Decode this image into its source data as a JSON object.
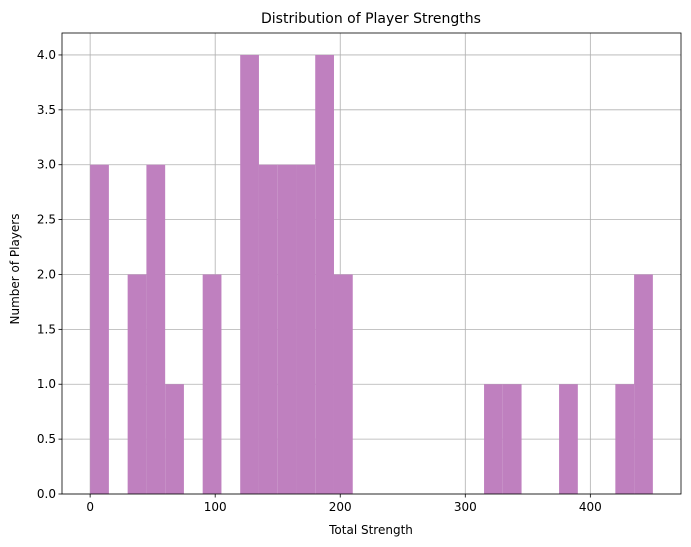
{
  "chart_data": {
    "type": "bar",
    "title": "Distribution of Player Strengths",
    "xlabel": "Total Strength",
    "ylabel": "Number of Players",
    "xlim": [
      -22.5,
      472.5
    ],
    "ylim": [
      0,
      4.2
    ],
    "grid": true,
    "bar_color": "#bf80bf",
    "bin_width": 15,
    "bins": [
      {
        "x0": 0,
        "x1": 15,
        "count": 3
      },
      {
        "x0": 15,
        "x1": 30,
        "count": 0
      },
      {
        "x0": 30,
        "x1": 45,
        "count": 2
      },
      {
        "x0": 45,
        "x1": 60,
        "count": 3
      },
      {
        "x0": 60,
        "x1": 75,
        "count": 1
      },
      {
        "x0": 75,
        "x1": 90,
        "count": 0
      },
      {
        "x0": 90,
        "x1": 105,
        "count": 2
      },
      {
        "x0": 105,
        "x1": 120,
        "count": 0
      },
      {
        "x0": 120,
        "x1": 135,
        "count": 4
      },
      {
        "x0": 135,
        "x1": 150,
        "count": 3
      },
      {
        "x0": 150,
        "x1": 165,
        "count": 3
      },
      {
        "x0": 165,
        "x1": 180,
        "count": 3
      },
      {
        "x0": 180,
        "x1": 195,
        "count": 4
      },
      {
        "x0": 195,
        "x1": 210,
        "count": 2
      },
      {
        "x0": 210,
        "x1": 225,
        "count": 0
      },
      {
        "x0": 225,
        "x1": 240,
        "count": 0
      },
      {
        "x0": 240,
        "x1": 255,
        "count": 0
      },
      {
        "x0": 255,
        "x1": 270,
        "count": 0
      },
      {
        "x0": 270,
        "x1": 285,
        "count": 0
      },
      {
        "x0": 285,
        "x1": 300,
        "count": 0
      },
      {
        "x0": 300,
        "x1": 315,
        "count": 0
      },
      {
        "x0": 315,
        "x1": 330,
        "count": 1
      },
      {
        "x0": 330,
        "x1": 345,
        "count": 1
      },
      {
        "x0": 345,
        "x1": 360,
        "count": 0
      },
      {
        "x0": 360,
        "x1": 375,
        "count": 0
      },
      {
        "x0": 375,
        "x1": 390,
        "count": 1
      },
      {
        "x0": 390,
        "x1": 405,
        "count": 0
      },
      {
        "x0": 405,
        "x1": 420,
        "count": 0
      },
      {
        "x0": 420,
        "x1": 435,
        "count": 1
      },
      {
        "x0": 435,
        "x1": 450,
        "count": 2
      }
    ],
    "x_ticks": [
      0,
      100,
      200,
      300,
      400
    ],
    "x_tick_labels": [
      "0",
      "100",
      "200",
      "300",
      "400"
    ],
    "y_ticks": [
      0,
      0.5,
      1,
      1.5,
      2,
      2.5,
      3,
      3.5,
      4
    ],
    "y_tick_labels": [
      "0.0",
      "0.5",
      "1.0",
      "1.5",
      "2.0",
      "2.5",
      "3.0",
      "3.5",
      "4.0"
    ]
  }
}
